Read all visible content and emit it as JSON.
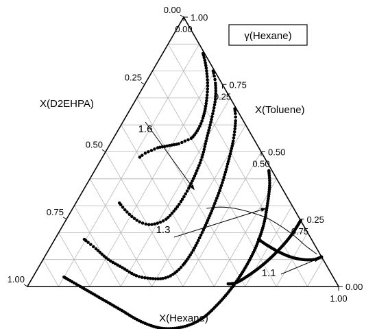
{
  "chart_data": {
    "type": "scatter",
    "subtype": "ternary",
    "legend_label": "γ(Hexane)",
    "legend_position": "top-right",
    "grid": true,
    "axes": {
      "hexane": {
        "title": "X(Hexane)",
        "ticks": [
          "0.00",
          "0.25",
          "0.50",
          "0.75",
          "1.00"
        ]
      },
      "d2ehpa": {
        "title": "X(D2EHPA)",
        "ticks": [
          "0.00",
          "0.25",
          "0.50",
          "0.75",
          "1.00"
        ]
      },
      "toluene": {
        "title": "X(Toluene)",
        "ticks": [
          "1.00",
          "0.75",
          "0.50",
          "0.25",
          "0.00"
        ]
      }
    },
    "annotations": [
      {
        "text": "1.6",
        "target": {
          "hexane": 0.355,
          "d2ehpa": 0.285
        }
      },
      {
        "text": "1.3",
        "target": {
          "hexane": 0.62,
          "d2ehpa": 0.09
        }
      },
      {
        "text": "1.1",
        "target": {
          "hexane": 0.885,
          "d2ehpa": 0.01
        }
      }
    ],
    "series": [
      {
        "points": [
          [
            0.12,
            0.4
          ],
          [
            0.13,
            0.375
          ],
          [
            0.145,
            0.35
          ],
          [
            0.16,
            0.325
          ],
          [
            0.18,
            0.3
          ],
          [
            0.2,
            0.275
          ],
          [
            0.22,
            0.25
          ],
          [
            0.235,
            0.225
          ],
          [
            0.25,
            0.2
          ],
          [
            0.255,
            0.175
          ],
          [
            0.255,
            0.15
          ],
          [
            0.25,
            0.125
          ],
          [
            0.24,
            0.1
          ],
          [
            0.225,
            0.075
          ],
          [
            0.205,
            0.05
          ],
          [
            0.18,
            0.03
          ],
          [
            0.155,
            0.015
          ],
          [
            0.13,
            0.005
          ]
        ]
      },
      {
        "points": [
          [
            0.14,
            0.55
          ],
          [
            0.17,
            0.545
          ],
          [
            0.205,
            0.535
          ],
          [
            0.24,
            0.52
          ],
          [
            0.275,
            0.495
          ],
          [
            0.3,
            0.465
          ],
          [
            0.32,
            0.43
          ],
          [
            0.33,
            0.39
          ],
          [
            0.335,
            0.35
          ],
          [
            0.335,
            0.3
          ],
          [
            0.33,
            0.25
          ],
          [
            0.32,
            0.2
          ],
          [
            0.3,
            0.15
          ],
          [
            0.28,
            0.1
          ],
          [
            0.255,
            0.05
          ],
          [
            0.225,
            0.02
          ],
          [
            0.195,
            0.005
          ]
        ]
      },
      {
        "points": [
          [
            0.095,
            0.73
          ],
          [
            0.15,
            0.71
          ],
          [
            0.21,
            0.69
          ],
          [
            0.27,
            0.66
          ],
          [
            0.33,
            0.63
          ],
          [
            0.38,
            0.59
          ],
          [
            0.42,
            0.55
          ],
          [
            0.445,
            0.51
          ],
          [
            0.46,
            0.46
          ],
          [
            0.465,
            0.4
          ],
          [
            0.46,
            0.33
          ],
          [
            0.45,
            0.26
          ],
          [
            0.435,
            0.19
          ],
          [
            0.415,
            0.13
          ],
          [
            0.39,
            0.07
          ],
          [
            0.36,
            0.025
          ],
          [
            0.335,
            0.005
          ]
        ]
      },
      {
        "points": [
          [
            0.1,
            0.865
          ],
          [
            0.17,
            0.83
          ],
          [
            0.25,
            0.79
          ],
          [
            0.34,
            0.745
          ],
          [
            0.43,
            0.7
          ],
          [
            0.51,
            0.645
          ],
          [
            0.575,
            0.575
          ],
          [
            0.62,
            0.5
          ],
          [
            0.645,
            0.42
          ],
          [
            0.66,
            0.34
          ],
          [
            0.665,
            0.26
          ],
          [
            0.66,
            0.19
          ],
          [
            0.645,
            0.13
          ],
          [
            0.62,
            0.08
          ],
          [
            0.59,
            0.035
          ],
          [
            0.56,
            0.01
          ]
        ]
      },
      {
        "points": [
          [
            0.755,
            0.0
          ],
          [
            0.753,
            0.05
          ],
          [
            0.745,
            0.1
          ],
          [
            0.73,
            0.16
          ],
          [
            0.71,
            0.22
          ],
          [
            0.685,
            0.28
          ],
          [
            0.665,
            0.32
          ],
          [
            0.648,
            0.342
          ],
          [
            0.64,
            0.35
          ]
        ]
      },
      {
        "points": [
          [
            0.89,
            0.0
          ],
          [
            0.87,
            0.03
          ],
          [
            0.835,
            0.065
          ],
          [
            0.79,
            0.1
          ],
          [
            0.74,
            0.13
          ],
          [
            0.69,
            0.155
          ],
          [
            0.655,
            0.17
          ]
        ]
      }
    ],
    "reference_line": [
      [
        0.43,
        0.28
      ],
      [
        0.47,
        0.235
      ],
      [
        0.52,
        0.19
      ],
      [
        0.58,
        0.145
      ],
      [
        0.64,
        0.105
      ],
      [
        0.7,
        0.075
      ],
      [
        0.76,
        0.05
      ],
      [
        0.82,
        0.03
      ],
      [
        0.87,
        0.01
      ]
    ]
  }
}
